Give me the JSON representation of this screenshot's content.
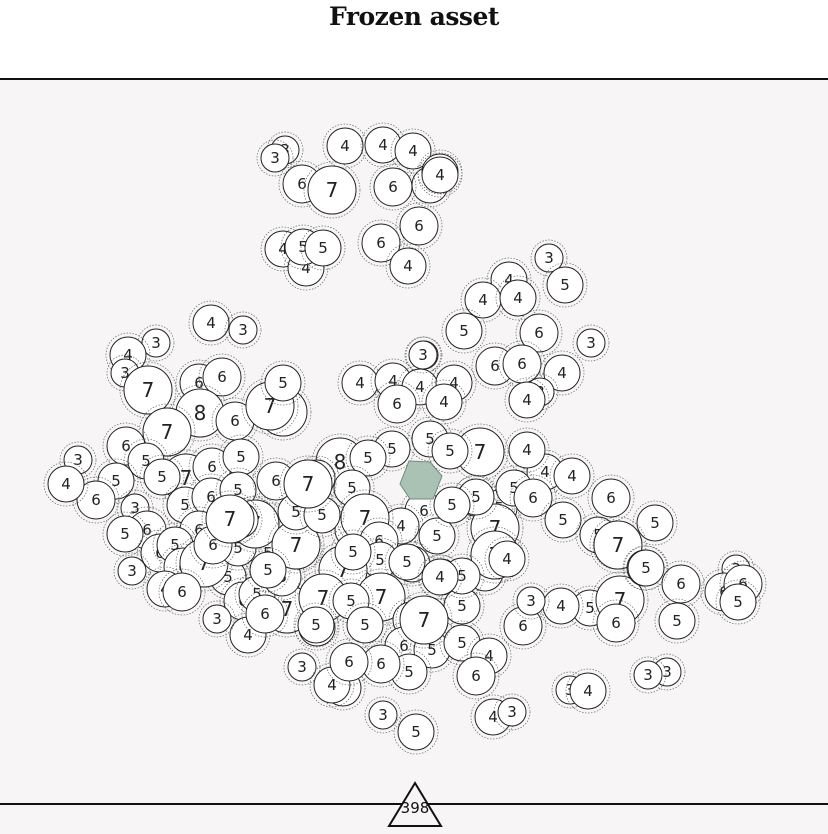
{
  "header": {
    "title": "Frozen asset"
  },
  "footer": {
    "remaining_count": "398"
  },
  "colors": {
    "background": "#f7f5f6",
    "selected_fill": "#a9c2b4",
    "stroke": "#222222"
  },
  "board": {
    "cluster_labels": {
      "top": [
        "3",
        "3",
        "4",
        "4",
        "4",
        "4",
        "6",
        "7",
        "6",
        "4",
        "4",
        "6",
        "6",
        "4",
        "5",
        "5",
        "4",
        "4"
      ],
      "upper_right": [
        "4",
        "3",
        "5",
        "4",
        "4",
        "5",
        "6",
        "3",
        "6",
        "6",
        "4",
        "3",
        "4",
        "3"
      ],
      "left": [
        "4",
        "3",
        "3",
        "4",
        "3",
        "7",
        "6",
        "6",
        "8",
        "7",
        "6",
        "6",
        "5",
        "7",
        "3",
        "5",
        "7",
        "6",
        "6",
        "5",
        "5",
        "7",
        "5",
        "6",
        "5",
        "4",
        "3",
        "6",
        "6",
        "5",
        "6",
        "5",
        "6",
        "5",
        "7",
        "6",
        "5",
        "6",
        "5",
        "7",
        "5",
        "3",
        "4",
        "6",
        "5",
        "6",
        "7",
        "6",
        "5",
        "4",
        "3",
        "6",
        "5",
        "7",
        "6",
        "5",
        "7"
      ],
      "center": [
        "4",
        "4",
        "4",
        "4",
        "6",
        "4",
        "3",
        "5",
        "5",
        "5",
        "7",
        "8",
        "5",
        "4",
        "5",
        "5",
        "6",
        "5",
        "5",
        "5",
        "4",
        "7",
        "5",
        "5",
        "5",
        "7",
        "6",
        "5",
        "5",
        "7",
        "4",
        "5",
        "5",
        "7",
        "7",
        "5",
        "5",
        "5",
        "7",
        "5",
        "6",
        "5",
        "5",
        "5",
        "5",
        "7",
        "3",
        "4",
        "6",
        "6",
        "3",
        "5",
        "4",
        "4",
        "3",
        "5",
        "4",
        "3",
        "4",
        "4",
        "6",
        "6",
        "5",
        "7",
        "5"
      ],
      "right": [
        "4",
        "4",
        "5",
        "5",
        "6",
        "5",
        "5",
        "5",
        "6",
        "6",
        "5",
        "5",
        "7",
        "7",
        "5",
        "6",
        "6",
        "5",
        "5",
        "3",
        "6",
        "6",
        "5",
        "3",
        "3",
        "4",
        "4",
        "3"
      ]
    }
  }
}
